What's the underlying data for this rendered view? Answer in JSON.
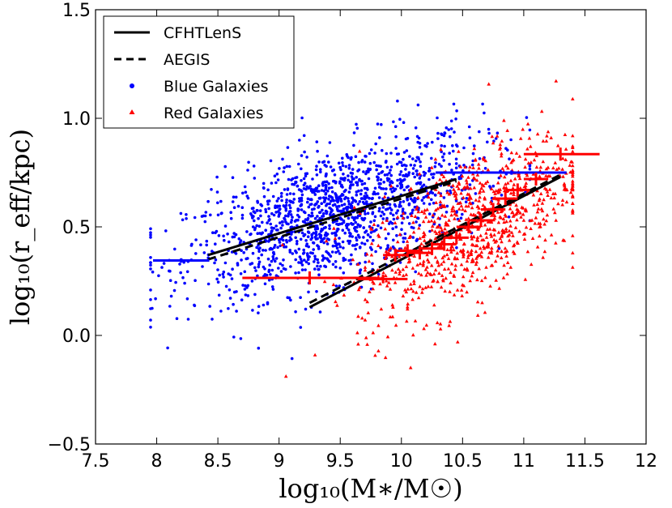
{
  "chart_data": {
    "type": "scatter",
    "title": "",
    "xlabel": "log₁₀(M∗/M☉)",
    "ylabel": "log₁₀(r_eff/kpc)",
    "xlim": [
      7.5,
      12
    ],
    "ylim": [
      -0.5,
      1.5
    ],
    "xticks": [
      7.5,
      8,
      8.5,
      9,
      9.5,
      10,
      10.5,
      11,
      11.5,
      12
    ],
    "xtick_labels": [
      "7.5",
      "8",
      "8.5",
      "9",
      "9.5",
      "10",
      "10.5",
      "11",
      "11.5",
      "12"
    ],
    "yticks": [
      -0.5,
      0.0,
      0.5,
      1.0,
      1.5
    ],
    "ytick_labels": [
      "−0.5",
      "0.0",
      "0.5",
      "1.0",
      "1.5"
    ],
    "legend": {
      "position": "top-left",
      "entries": [
        {
          "label": "CFHTLenS",
          "style": "solid-line",
          "color": "#000000"
        },
        {
          "label": "AEGIS",
          "style": "dashed-line",
          "color": "#000000"
        },
        {
          "label": "Blue Galaxies",
          "style": "circle-marker",
          "color": "#0000ff"
        },
        {
          "label": "Red Galaxies",
          "style": "triangle-marker",
          "color": "#ff0000"
        }
      ]
    },
    "lines": [
      {
        "name": "CFHTLenS blue",
        "style": "solid",
        "color": "#000000",
        "x": [
          8.42,
          10.45
        ],
        "y": [
          0.37,
          0.72
        ]
      },
      {
        "name": "AEGIS blue",
        "style": "dashed",
        "color": "#000000",
        "x": [
          8.42,
          10.45
        ],
        "y": [
          0.35,
          0.71
        ]
      },
      {
        "name": "CFHTLenS red",
        "style": "solid",
        "color": "#000000",
        "x": [
          9.25,
          11.3
        ],
        "y": [
          0.13,
          0.73
        ]
      },
      {
        "name": "AEGIS red",
        "style": "dashed",
        "color": "#000000",
        "x": [
          9.25,
          11.3
        ],
        "y": [
          0.15,
          0.74
        ]
      }
    ],
    "binned_means": [
      {
        "name": "Blue Galaxies bins",
        "color": "#0000ff",
        "points": [
          {
            "x": 8.2,
            "xerr": [
              7.97,
              8.43
            ],
            "y": 0.345,
            "yerr": 0.01
          },
          {
            "x": 10.9,
            "xerr": [
              10.28,
              11.35
            ],
            "y": 0.75,
            "yerr": 0.01
          }
        ]
      },
      {
        "name": "Red Galaxies bins",
        "color": "#ff0000",
        "points": [
          {
            "x": 9.25,
            "xerr": [
              8.7,
              9.8
            ],
            "y": 0.265,
            "yerr": 0.03
          },
          {
            "x": 9.85,
            "xerr": [
              9.65,
              10.05
            ],
            "y": 0.26,
            "yerr": 0.02
          },
          {
            "x": 9.95,
            "xerr": [
              9.85,
              10.05
            ],
            "y": 0.37,
            "yerr": 0.03
          },
          {
            "x": 10.05,
            "xerr": [
              9.95,
              10.15
            ],
            "y": 0.39,
            "yerr": 0.03
          },
          {
            "x": 10.15,
            "xerr": [
              10.05,
              10.25
            ],
            "y": 0.38,
            "yerr": 0.03
          },
          {
            "x": 10.25,
            "xerr": [
              10.15,
              10.35
            ],
            "y": 0.4,
            "yerr": 0.03
          },
          {
            "x": 10.35,
            "xerr": [
              10.25,
              10.45
            ],
            "y": 0.42,
            "yerr": 0.03
          },
          {
            "x": 10.45,
            "xerr": [
              10.35,
              10.55
            ],
            "y": 0.45,
            "yerr": 0.03
          },
          {
            "x": 10.55,
            "xerr": [
              10.45,
              10.65
            ],
            "y": 0.5,
            "yerr": 0.03
          },
          {
            "x": 10.65,
            "xerr": [
              10.55,
              10.75
            ],
            "y": 0.53,
            "yerr": 0.03
          },
          {
            "x": 10.75,
            "xerr": [
              10.65,
              10.85
            ],
            "y": 0.58,
            "yerr": 0.03
          },
          {
            "x": 10.85,
            "xerr": [
              10.75,
              10.95
            ],
            "y": 0.63,
            "yerr": 0.03
          },
          {
            "x": 10.95,
            "xerr": [
              10.85,
              11.05
            ],
            "y": 0.67,
            "yerr": 0.03
          },
          {
            "x": 11.1,
            "xerr": [
              11.0,
              11.2
            ],
            "y": 0.72,
            "yerr": 0.03
          },
          {
            "x": 11.3,
            "xerr": [
              11.0,
              11.62
            ],
            "y": 0.835,
            "yerr": 0.03
          }
        ]
      }
    ],
    "scatter_series": [
      {
        "name": "Blue Galaxies",
        "marker": "circle",
        "color": "#0000ff",
        "count": 1500,
        "distribution": {
          "x_center": 9.45,
          "x_spread": 0.6,
          "x_range": [
            7.95,
            11.05
          ],
          "slope": 0.17,
          "y_at_center": 0.555,
          "y_spread": 0.15,
          "y_range": [
            -0.35,
            1.48
          ]
        }
      },
      {
        "name": "Red Galaxies",
        "marker": "triangle",
        "color": "#ff0000",
        "count": 900,
        "distribution": {
          "x_center": 10.55,
          "x_spread": 0.45,
          "x_range": [
            8.6,
            11.4
          ],
          "slope": 0.29,
          "y_at_center": 0.5,
          "y_spread": 0.17,
          "y_range": [
            -0.25,
            1.32
          ]
        }
      }
    ]
  }
}
